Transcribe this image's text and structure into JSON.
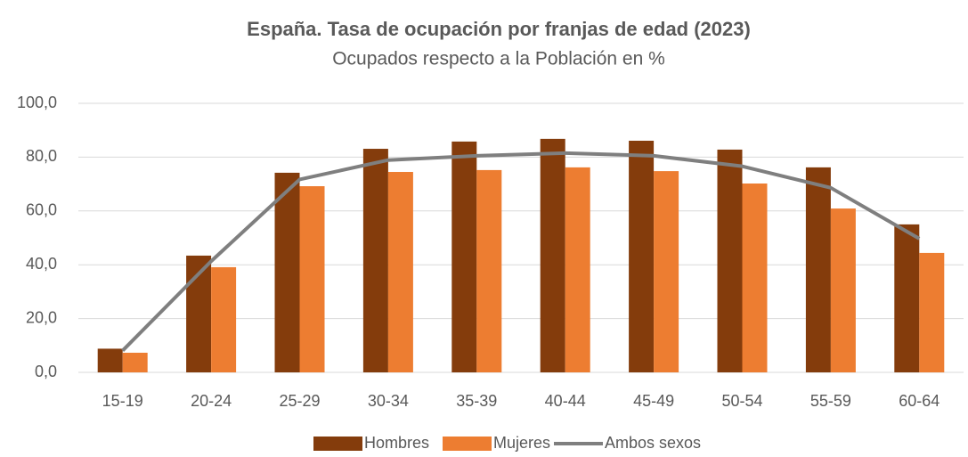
{
  "chart_data": {
    "type": "bar_line",
    "title": "España. Tasa de ocupación por franjas de edad (2023)",
    "subtitle": "Ocupados respecto a la Población en %",
    "categories": [
      "15-19",
      "20-24",
      "25-29",
      "30-34",
      "35-39",
      "40-44",
      "45-49",
      "50-54",
      "55-59",
      "60-64"
    ],
    "series": [
      {
        "name": "Hombres",
        "color": "#843c0c",
        "kind": "bar",
        "values": [
          8.8,
          43.4,
          74.2,
          83.1,
          85.8,
          86.8,
          86.1,
          82.8,
          76.2,
          55.0
        ]
      },
      {
        "name": "Mujeres",
        "color": "#ed7d31",
        "kind": "bar",
        "values": [
          7.3,
          39.1,
          69.2,
          74.5,
          75.2,
          76.2,
          74.8,
          70.2,
          60.9,
          44.4
        ]
      },
      {
        "name": "Ambos sexos",
        "color": "#7f7f7f",
        "kind": "line",
        "values": [
          8.1,
          41.3,
          71.7,
          78.9,
          80.5,
          81.5,
          80.5,
          76.6,
          68.6,
          49.7
        ]
      }
    ],
    "ylim": [
      0,
      100
    ],
    "yticks": [
      {
        "value": 0,
        "label": "0,0"
      },
      {
        "value": 20,
        "label": "20,0"
      },
      {
        "value": 40,
        "label": "40,0"
      },
      {
        "value": 60,
        "label": "60,0"
      },
      {
        "value": 80,
        "label": "80,0"
      },
      {
        "value": 100,
        "label": "100,0"
      }
    ],
    "grid": true,
    "legend": "bottom"
  }
}
